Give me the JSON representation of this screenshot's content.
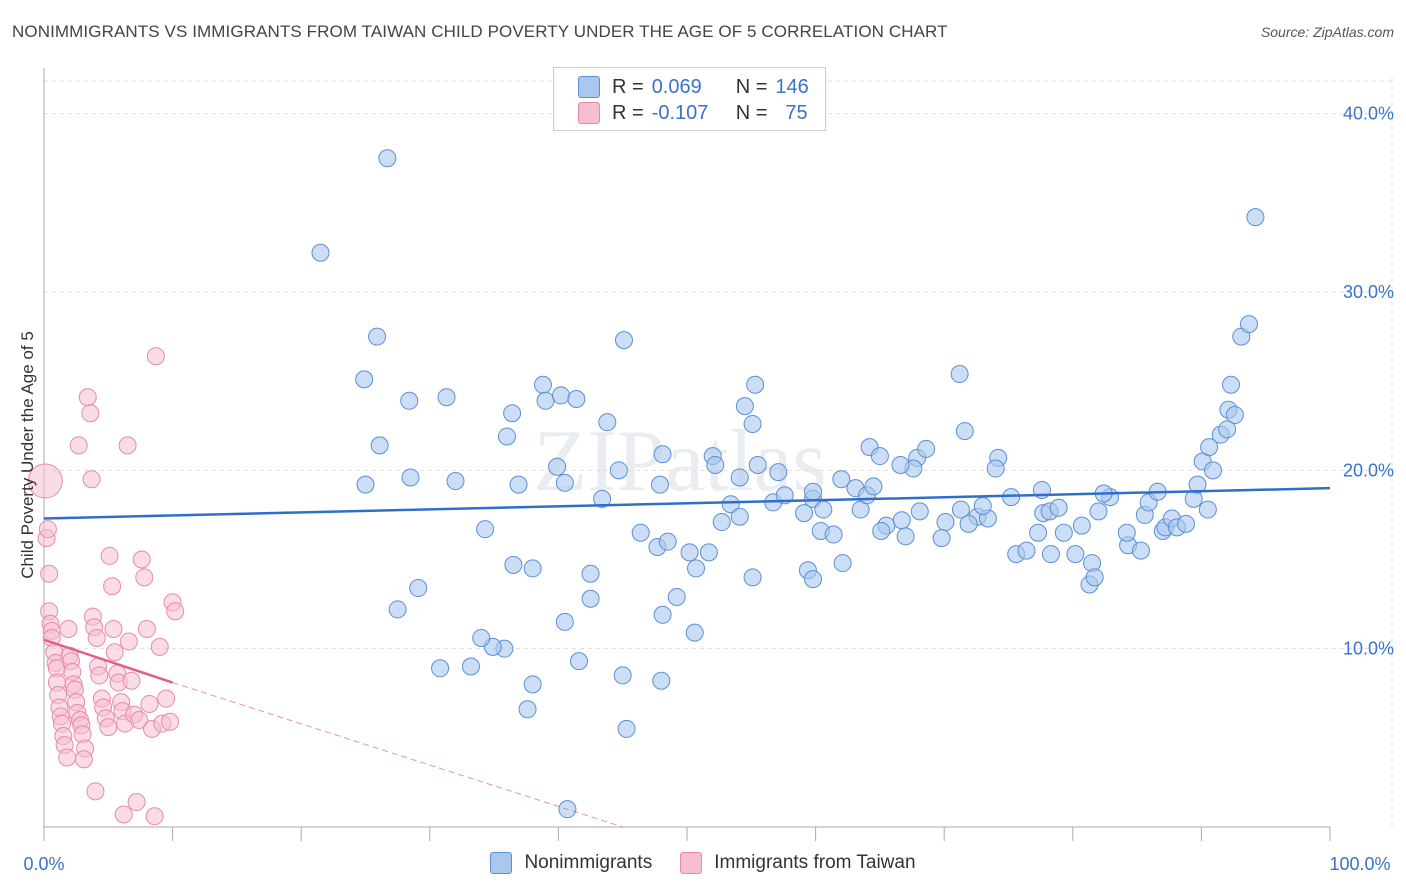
{
  "title": "NONIMMIGRANTS VS IMMIGRANTS FROM TAIWAN CHILD POVERTY UNDER THE AGE OF 5 CORRELATION CHART",
  "source": "Source: ZipAtlas.com",
  "watermark": "ZIPatlas",
  "colors": {
    "blue_fill": "#aac8ee",
    "blue_stroke": "#5b8fd6",
    "blue_line": "#2f6fca",
    "pink_fill": "#f6bfd0",
    "pink_stroke": "#e88aa8",
    "pink_line": "#e05f8e",
    "tick_text": "#3a72c9",
    "grid": "#dddddd"
  },
  "legend": {
    "r_label": "R =",
    "n_label": "N =",
    "series": [
      {
        "r": "0.069",
        "n": "146"
      },
      {
        "r": "-0.107",
        "n": "75"
      }
    ]
  },
  "chart_data": {
    "type": "scatter",
    "title": "NONIMMIGRANTS VS IMMIGRANTS FROM TAIWAN CHILD POVERTY UNDER THE AGE OF 5 CORRELATION CHART",
    "xlabel": "",
    "ylabel": "Child Poverty Under the Age of 5",
    "xlim": [
      0,
      100
    ],
    "ylim": [
      0,
      42
    ],
    "x_tick_labels": [
      "0.0%",
      "100.0%"
    ],
    "y_ticks": [
      10,
      20,
      30,
      40
    ],
    "y_tick_labels": [
      "10.0%",
      "20.0%",
      "30.0%",
      "40.0%"
    ],
    "grid": true,
    "legend_position": "bottom",
    "series": [
      {
        "name": "Nonimmigrants",
        "trend": {
          "x": [
            0,
            100
          ],
          "y": [
            17.3,
            19.0
          ]
        },
        "points": [
          [
            26.7,
            37.5
          ],
          [
            21.5,
            32.2
          ],
          [
            25.9,
            27.5
          ],
          [
            45.1,
            27.3
          ],
          [
            24.9,
            25.1
          ],
          [
            26.1,
            21.4
          ],
          [
            28.4,
            23.9
          ],
          [
            31.3,
            24.1
          ],
          [
            32.0,
            19.4
          ],
          [
            25.0,
            19.2
          ],
          [
            28.5,
            19.6
          ],
          [
            34.3,
            16.7
          ],
          [
            36.5,
            14.7
          ],
          [
            36.9,
            19.2
          ],
          [
            36.0,
            21.9
          ],
          [
            36.4,
            23.2
          ],
          [
            38.8,
            24.8
          ],
          [
            39.0,
            23.9
          ],
          [
            40.2,
            24.2
          ],
          [
            41.4,
            24.0
          ],
          [
            39.9,
            20.2
          ],
          [
            40.5,
            19.3
          ],
          [
            38.0,
            14.5
          ],
          [
            42.5,
            14.2
          ],
          [
            44.7,
            20.0
          ],
          [
            43.8,
            22.7
          ],
          [
            43.4,
            18.4
          ],
          [
            46.4,
            16.5
          ],
          [
            48.1,
            20.9
          ],
          [
            47.9,
            19.2
          ],
          [
            47.7,
            15.7
          ],
          [
            48.5,
            16.0
          ],
          [
            50.2,
            15.4
          ],
          [
            51.7,
            15.4
          ],
          [
            52.0,
            20.8
          ],
          [
            52.2,
            20.3
          ],
          [
            49.2,
            12.9
          ],
          [
            48.1,
            11.9
          ],
          [
            52.7,
            17.1
          ],
          [
            53.4,
            18.1
          ],
          [
            54.1,
            19.6
          ],
          [
            54.1,
            17.4
          ],
          [
            55.1,
            22.6
          ],
          [
            55.3,
            24.8
          ],
          [
            54.5,
            23.6
          ],
          [
            55.5,
            20.3
          ],
          [
            56.7,
            18.2
          ],
          [
            57.1,
            19.9
          ],
          [
            57.6,
            18.6
          ],
          [
            59.1,
            17.6
          ],
          [
            59.8,
            18.4
          ],
          [
            59.8,
            18.8
          ],
          [
            60.6,
            17.8
          ],
          [
            60.4,
            16.6
          ],
          [
            61.4,
            16.4
          ],
          [
            62.0,
            19.5
          ],
          [
            63.5,
            17.8
          ],
          [
            63.1,
            19.0
          ],
          [
            64.0,
            18.6
          ],
          [
            64.5,
            19.1
          ],
          [
            66.7,
            17.2
          ],
          [
            67.0,
            16.3
          ],
          [
            65.5,
            16.9
          ],
          [
            65.1,
            16.6
          ],
          [
            64.2,
            21.3
          ],
          [
            65.0,
            20.8
          ],
          [
            68.1,
            17.7
          ],
          [
            67.9,
            20.7
          ],
          [
            68.6,
            21.2
          ],
          [
            67.6,
            20.1
          ],
          [
            70.1,
            17.1
          ],
          [
            69.8,
            16.2
          ],
          [
            71.3,
            17.8
          ],
          [
            72.6,
            17.4
          ],
          [
            71.9,
            17.0
          ],
          [
            73.4,
            17.3
          ],
          [
            73.0,
            18.0
          ],
          [
            71.6,
            22.2
          ],
          [
            74.2,
            20.7
          ],
          [
            74.0,
            20.1
          ],
          [
            75.2,
            18.5
          ],
          [
            75.6,
            15.3
          ],
          [
            76.4,
            15.5
          ],
          [
            77.3,
            16.5
          ],
          [
            77.7,
            17.6
          ],
          [
            78.2,
            17.7
          ],
          [
            78.3,
            15.3
          ],
          [
            77.6,
            18.9
          ],
          [
            78.9,
            17.9
          ],
          [
            79.3,
            16.5
          ],
          [
            80.7,
            16.9
          ],
          [
            80.2,
            15.3
          ],
          [
            81.5,
            14.8
          ],
          [
            81.3,
            13.6
          ],
          [
            81.7,
            14.0
          ],
          [
            82.0,
            17.7
          ],
          [
            82.9,
            18.5
          ],
          [
            82.4,
            18.7
          ],
          [
            84.3,
            15.8
          ],
          [
            84.2,
            16.5
          ],
          [
            85.3,
            15.5
          ],
          [
            85.6,
            17.5
          ],
          [
            85.9,
            18.2
          ],
          [
            86.6,
            18.8
          ],
          [
            87.0,
            16.6
          ],
          [
            87.2,
            16.8
          ],
          [
            87.7,
            17.3
          ],
          [
            88.1,
            16.8
          ],
          [
            88.8,
            17.0
          ],
          [
            89.4,
            18.4
          ],
          [
            89.7,
            19.2
          ],
          [
            90.1,
            20.5
          ],
          [
            90.5,
            17.8
          ],
          [
            90.9,
            20.0
          ],
          [
            90.6,
            21.3
          ],
          [
            91.5,
            22.0
          ],
          [
            92.1,
            23.4
          ],
          [
            92.6,
            23.1
          ],
          [
            92.0,
            22.3
          ],
          [
            92.3,
            24.8
          ],
          [
            93.1,
            27.5
          ],
          [
            93.7,
            28.2
          ],
          [
            94.2,
            34.2
          ],
          [
            71.2,
            25.4
          ],
          [
            66.6,
            20.3
          ],
          [
            62.1,
            14.8
          ],
          [
            59.4,
            14.4
          ],
          [
            59.8,
            13.9
          ],
          [
            55.1,
            14.0
          ],
          [
            50.7,
            14.5
          ],
          [
            50.6,
            10.9
          ],
          [
            48.0,
            8.2
          ],
          [
            45.0,
            8.5
          ],
          [
            45.3,
            5.5
          ],
          [
            41.6,
            9.3
          ],
          [
            38.0,
            8.0
          ],
          [
            37.6,
            6.6
          ],
          [
            35.8,
            10.0
          ],
          [
            34.9,
            10.1
          ],
          [
            33.2,
            9.0
          ],
          [
            34.0,
            10.6
          ],
          [
            30.8,
            8.9
          ],
          [
            29.1,
            13.4
          ],
          [
            27.5,
            12.2
          ],
          [
            40.5,
            11.5
          ],
          [
            40.7,
            1.0
          ],
          [
            42.5,
            12.8
          ]
        ]
      },
      {
        "name": "Immigrants from Taiwan",
        "trend": {
          "x": [
            0,
            10
          ],
          "y": [
            10.5,
            8.1
          ]
        },
        "trend_extended": {
          "x": [
            10,
            45
          ],
          "y": [
            8.1,
            0
          ]
        },
        "points": [
          [
            0.1,
            19.4
          ],
          [
            0.2,
            16.2
          ],
          [
            0.3,
            16.7
          ],
          [
            0.4,
            14.2
          ],
          [
            0.4,
            12.1
          ],
          [
            0.5,
            11.4
          ],
          [
            0.6,
            11.0
          ],
          [
            0.6,
            10.6
          ],
          [
            0.8,
            9.8
          ],
          [
            0.9,
            9.2
          ],
          [
            1.0,
            8.9
          ],
          [
            1.0,
            8.1
          ],
          [
            1.1,
            7.4
          ],
          [
            1.2,
            6.7
          ],
          [
            1.3,
            6.2
          ],
          [
            1.4,
            5.8
          ],
          [
            1.5,
            5.1
          ],
          [
            1.6,
            4.6
          ],
          [
            1.8,
            3.9
          ],
          [
            2.0,
            9.6
          ],
          [
            2.1,
            9.3
          ],
          [
            2.2,
            8.7
          ],
          [
            2.3,
            8.0
          ],
          [
            2.4,
            7.7
          ],
          [
            2.5,
            7.0
          ],
          [
            2.6,
            6.4
          ],
          [
            2.8,
            6.0
          ],
          [
            2.9,
            5.7
          ],
          [
            3.0,
            5.2
          ],
          [
            3.2,
            4.4
          ],
          [
            3.4,
            24.1
          ],
          [
            3.6,
            23.2
          ],
          [
            3.7,
            19.5
          ],
          [
            3.8,
            11.8
          ],
          [
            3.9,
            11.2
          ],
          [
            4.1,
            10.6
          ],
          [
            4.2,
            9.0
          ],
          [
            4.3,
            8.5
          ],
          [
            4.5,
            7.2
          ],
          [
            4.6,
            6.7
          ],
          [
            4.8,
            6.1
          ],
          [
            5.0,
            5.6
          ],
          [
            5.1,
            15.2
          ],
          [
            5.3,
            13.5
          ],
          [
            5.4,
            11.1
          ],
          [
            5.5,
            9.8
          ],
          [
            5.7,
            8.6
          ],
          [
            5.8,
            8.1
          ],
          [
            6.0,
            7.0
          ],
          [
            6.1,
            6.5
          ],
          [
            6.3,
            5.8
          ],
          [
            6.5,
            21.4
          ],
          [
            6.6,
            10.4
          ],
          [
            6.8,
            8.2
          ],
          [
            7.0,
            6.3
          ],
          [
            7.2,
            1.4
          ],
          [
            7.4,
            6.0
          ],
          [
            7.6,
            15.0
          ],
          [
            7.8,
            14.0
          ],
          [
            8.0,
            11.1
          ],
          [
            8.2,
            6.9
          ],
          [
            8.4,
            5.5
          ],
          [
            8.6,
            0.6
          ],
          [
            8.7,
            26.4
          ],
          [
            9.0,
            10.1
          ],
          [
            9.2,
            5.8
          ],
          [
            9.5,
            7.2
          ],
          [
            9.8,
            5.9
          ],
          [
            10.0,
            12.6
          ],
          [
            10.2,
            12.1
          ],
          [
            6.2,
            0.7
          ],
          [
            4.0,
            2.0
          ],
          [
            3.1,
            3.8
          ],
          [
            2.7,
            21.4
          ],
          [
            1.9,
            11.1
          ]
        ]
      }
    ]
  },
  "bottom_legend": [
    "Nonimmigrants",
    "Immigrants from Taiwan"
  ]
}
